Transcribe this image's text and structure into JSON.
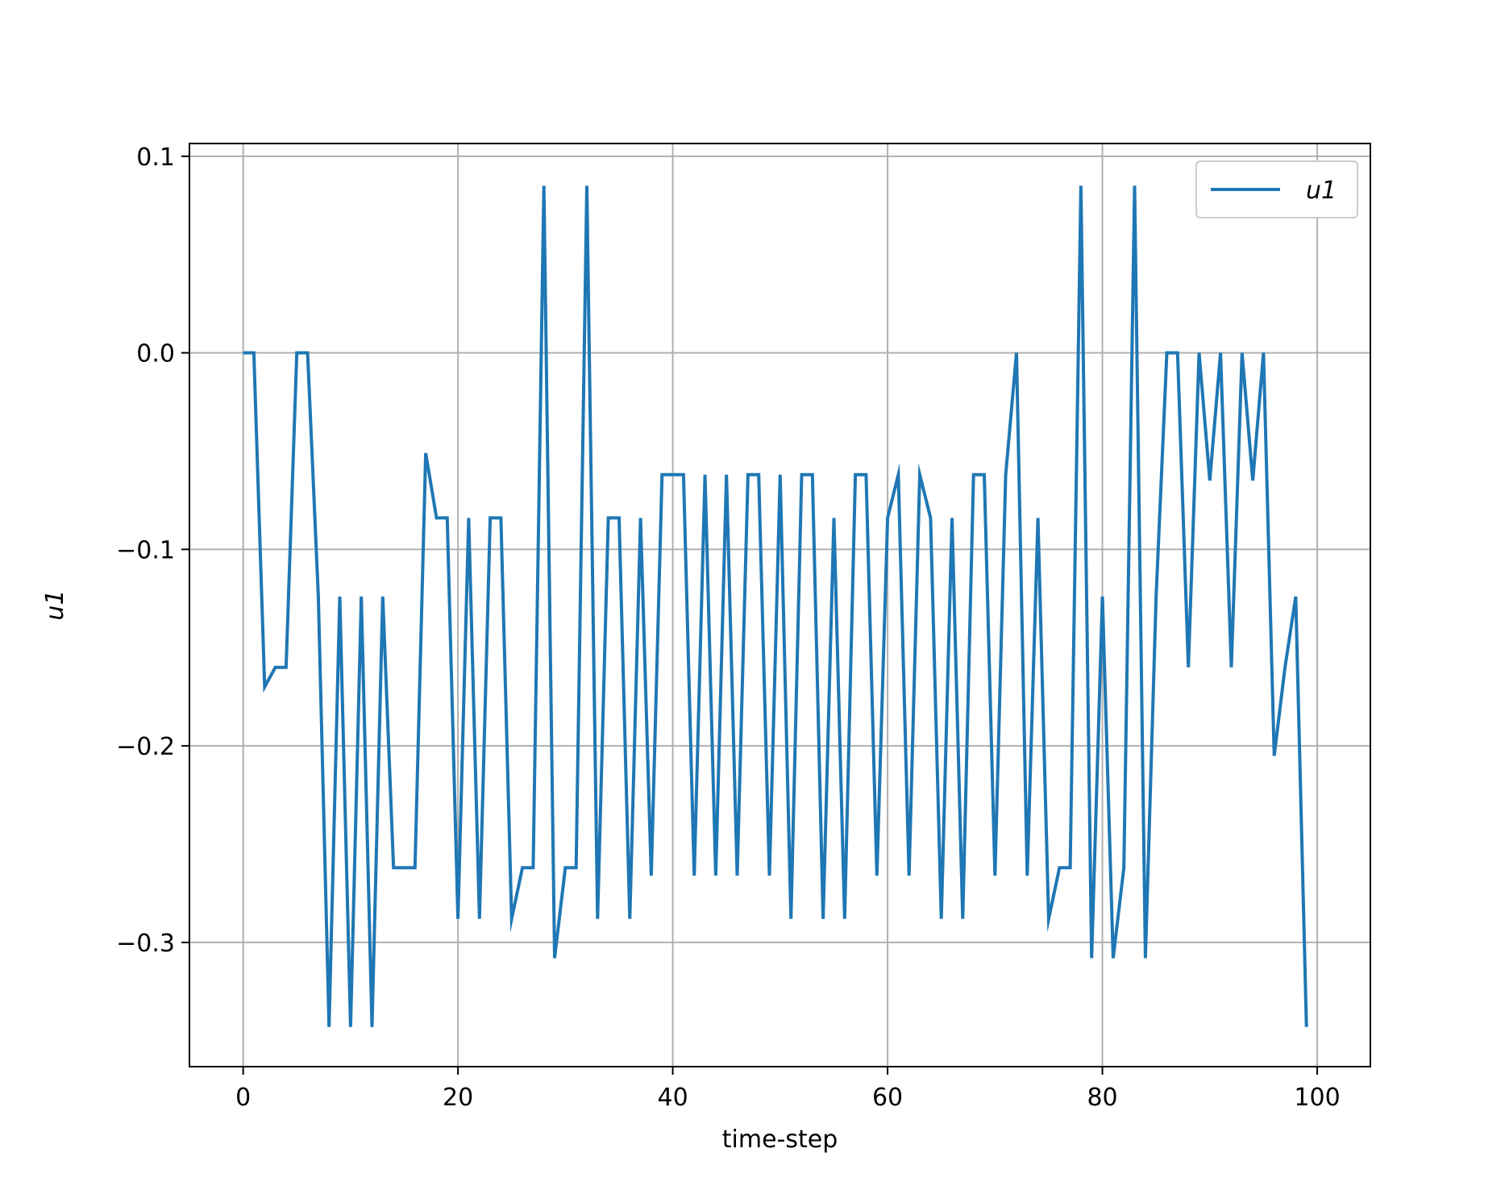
{
  "chart_data": {
    "type": "line",
    "title": "",
    "xlabel": "time-step",
    "ylabel": "u1",
    "xlim": [
      -5,
      104.95
    ],
    "ylim": [
      -0.3632,
      0.1065
    ],
    "xticks": [
      0,
      20,
      40,
      60,
      80,
      100
    ],
    "xtick_labels": [
      "0",
      "20",
      "40",
      "60",
      "80",
      "100"
    ],
    "yticks": [
      0.1,
      0.0,
      -0.1,
      -0.2,
      -0.3
    ],
    "ytick_labels": [
      "0.1",
      "0.0",
      "−0.1",
      "−0.2",
      "−0.3"
    ],
    "grid": true,
    "legend": {
      "position": "top-right",
      "entries": [
        "u1"
      ]
    },
    "series": [
      {
        "name": "u1",
        "color": "#1f77b4",
        "x": [
          0,
          1,
          2,
          3,
          4,
          5,
          6,
          7,
          8,
          9,
          10,
          11,
          12,
          13,
          14,
          15,
          16,
          17,
          18,
          19,
          20,
          21,
          22,
          23,
          24,
          25,
          26,
          27,
          28,
          29,
          30,
          31,
          32,
          33,
          34,
          35,
          36,
          37,
          38,
          39,
          40,
          41,
          42,
          43,
          44,
          45,
          46,
          47,
          48,
          49,
          50,
          51,
          52,
          53,
          54,
          55,
          56,
          57,
          58,
          59,
          60,
          61,
          62,
          63,
          64,
          65,
          66,
          67,
          68,
          69,
          70,
          71,
          72,
          73,
          74,
          75,
          76,
          77,
          78,
          79,
          80,
          81,
          82,
          83,
          84,
          85,
          86,
          87,
          88,
          89,
          90,
          91,
          92,
          93,
          94,
          95,
          96,
          97,
          98,
          99
        ],
        "values": [
          0,
          0,
          -0.17,
          -0.16,
          -0.16,
          0,
          0,
          -0.124,
          -0.343,
          -0.124,
          -0.343,
          -0.124,
          -0.343,
          -0.124,
          -0.262,
          -0.262,
          -0.262,
          -0.051,
          -0.084,
          -0.084,
          -0.288,
          -0.084,
          -0.288,
          -0.084,
          -0.084,
          -0.288,
          -0.262,
          -0.262,
          0.085,
          -0.308,
          -0.262,
          -0.262,
          0.085,
          -0.288,
          -0.084,
          -0.084,
          -0.288,
          -0.084,
          -0.266,
          -0.062,
          -0.062,
          -0.062,
          -0.266,
          -0.062,
          -0.266,
          -0.062,
          -0.266,
          -0.062,
          -0.062,
          -0.266,
          -0.062,
          -0.288,
          -0.062,
          -0.062,
          -0.288,
          -0.084,
          -0.288,
          -0.062,
          -0.062,
          -0.266,
          -0.084,
          -0.062,
          -0.266,
          -0.062,
          -0.084,
          -0.288,
          -0.084,
          -0.288,
          -0.062,
          -0.062,
          -0.266,
          -0.062,
          0,
          -0.266,
          -0.084,
          -0.288,
          -0.262,
          -0.262,
          0.085,
          -0.308,
          -0.124,
          -0.308,
          -0.262,
          0.085,
          -0.308,
          -0.124,
          0,
          0,
          -0.16,
          0,
          -0.065,
          0,
          -0.16,
          0,
          -0.065,
          0,
          -0.205,
          -0.16,
          -0.124,
          -0.343
        ]
      }
    ]
  }
}
